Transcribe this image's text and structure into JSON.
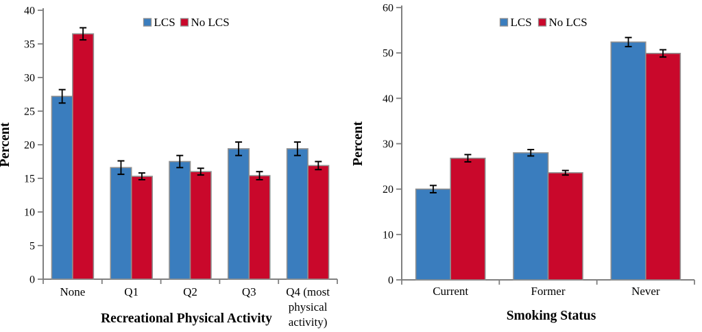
{
  "page": {
    "background": "#FFFFFF"
  },
  "style": {
    "bar_border": "#8F8F8F",
    "axis_color": "#7F7F7F",
    "error_bar_color": "#000000",
    "text_color": "#000000",
    "lcs_color": "#3A7DBE",
    "no_lcs_color": "#C9082B"
  },
  "chart_data": [
    {
      "id": "physical-activity",
      "type": "bar",
      "title": "",
      "xlabel": "Recreational Physical Activity",
      "ylabel": "Percent",
      "categories": [
        "None",
        "Q1",
        "Q2",
        "Q3",
        "Q4 (most\nphysical\nactivity)"
      ],
      "series": [
        {
          "name": "LCS",
          "color": "#3A7DBE",
          "values": [
            27.2,
            16.6,
            17.5,
            19.4,
            19.4
          ],
          "errors": [
            1.0,
            1.0,
            0.9,
            1.0,
            1.0
          ]
        },
        {
          "name": "No LCS",
          "color": "#C9082B",
          "values": [
            36.5,
            15.3,
            16.0,
            15.4,
            16.9
          ],
          "errors": [
            0.9,
            0.5,
            0.5,
            0.6,
            0.6
          ]
        }
      ],
      "ylim": [
        0,
        40
      ],
      "ytick_step": 5,
      "yticks": [
        0,
        5,
        10,
        15,
        20,
        25,
        30,
        35,
        40
      ],
      "grid": false,
      "error_bars": true,
      "legend": {
        "position": "top-center",
        "labels": [
          "LCS",
          "No LCS"
        ]
      }
    },
    {
      "id": "smoking-status",
      "type": "bar",
      "title": "",
      "xlabel": "Smoking Status",
      "ylabel": "Percent",
      "categories": [
        "Current",
        "Former",
        "Never"
      ],
      "series": [
        {
          "name": "LCS",
          "color": "#3A7DBE",
          "values": [
            20.0,
            28.0,
            52.4
          ],
          "errors": [
            0.8,
            0.7,
            1.0
          ]
        },
        {
          "name": "No LCS",
          "color": "#C9082B",
          "values": [
            26.8,
            23.6,
            49.9
          ],
          "errors": [
            0.8,
            0.5,
            0.8
          ]
        }
      ],
      "ylim": [
        0,
        60
      ],
      "ytick_step": 10,
      "yticks": [
        0,
        10,
        20,
        30,
        40,
        50,
        60
      ],
      "grid": false,
      "error_bars": true,
      "legend": {
        "position": "top-center",
        "labels": [
          "LCS",
          "No LCS"
        ]
      }
    }
  ]
}
